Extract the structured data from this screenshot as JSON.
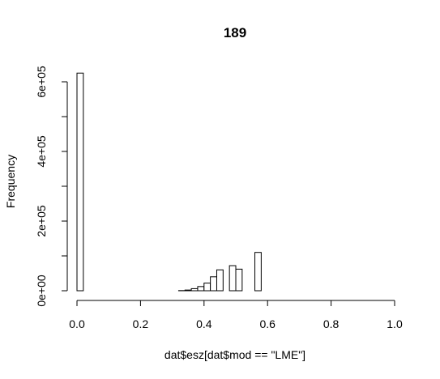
{
  "chart_data": {
    "type": "bar",
    "title": "189",
    "xlabel": "dat$esz[dat$mod == \"LME\"]",
    "ylabel": "Frequency",
    "xlim": [
      0,
      1
    ],
    "ylim": [
      0,
      620000
    ],
    "x_ticks": [
      0,
      0.2,
      0.4,
      0.6,
      0.8,
      1.0
    ],
    "x_tick_labels": [
      "0.0",
      "0.2",
      "0.4",
      "0.6",
      "0.8",
      "1.0"
    ],
    "y_ticks": [
      0,
      200000,
      400000,
      600000
    ],
    "y_tick_labels": [
      "0e+00",
      "2e+05",
      "4e+05",
      "6e+05"
    ],
    "bin_width": 0.02,
    "bins": [
      {
        "x0": 0.0,
        "x1": 0.02,
        "count": 625000
      },
      {
        "x0": 0.02,
        "x1": 0.04,
        "count": 0
      },
      {
        "x0": 0.04,
        "x1": 0.06,
        "count": 0
      },
      {
        "x0": 0.06,
        "x1": 0.08,
        "count": 0
      },
      {
        "x0": 0.08,
        "x1": 0.1,
        "count": 0
      },
      {
        "x0": 0.1,
        "x1": 0.12,
        "count": 0
      },
      {
        "x0": 0.12,
        "x1": 0.14,
        "count": 0
      },
      {
        "x0": 0.14,
        "x1": 0.16,
        "count": 0
      },
      {
        "x0": 0.16,
        "x1": 0.18,
        "count": 0
      },
      {
        "x0": 0.18,
        "x1": 0.2,
        "count": 0
      },
      {
        "x0": 0.2,
        "x1": 0.22,
        "count": 0
      },
      {
        "x0": 0.22,
        "x1": 0.24,
        "count": 0
      },
      {
        "x0": 0.24,
        "x1": 0.26,
        "count": 0
      },
      {
        "x0": 0.26,
        "x1": 0.28,
        "count": 0
      },
      {
        "x0": 0.28,
        "x1": 0.3,
        "count": 0
      },
      {
        "x0": 0.3,
        "x1": 0.32,
        "count": 0
      },
      {
        "x0": 0.32,
        "x1": 0.34,
        "count": 500
      },
      {
        "x0": 0.34,
        "x1": 0.36,
        "count": 2000
      },
      {
        "x0": 0.36,
        "x1": 0.38,
        "count": 6000
      },
      {
        "x0": 0.38,
        "x1": 0.4,
        "count": 12000
      },
      {
        "x0": 0.4,
        "x1": 0.42,
        "count": 22000
      },
      {
        "x0": 0.42,
        "x1": 0.44,
        "count": 40000
      },
      {
        "x0": 0.44,
        "x1": 0.46,
        "count": 60000
      },
      {
        "x0": 0.46,
        "x1": 0.48,
        "count": 0
      },
      {
        "x0": 0.48,
        "x1": 0.5,
        "count": 72000
      },
      {
        "x0": 0.5,
        "x1": 0.52,
        "count": 62000
      },
      {
        "x0": 0.52,
        "x1": 0.54,
        "count": 0
      },
      {
        "x0": 0.54,
        "x1": 0.56,
        "count": 0
      },
      {
        "x0": 0.56,
        "x1": 0.58,
        "count": 110000
      }
    ]
  }
}
